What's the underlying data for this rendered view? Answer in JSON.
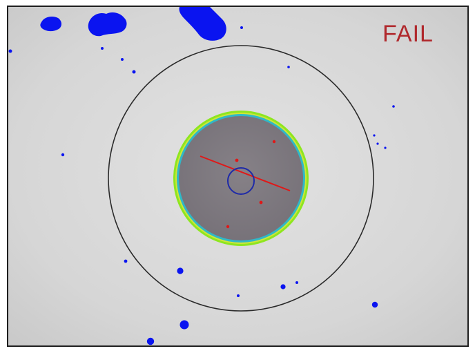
{
  "status": {
    "label": "FAIL",
    "color": "#b0282c"
  },
  "colors": {
    "background": "#d8d8d8",
    "cladding_ring": "#2a2a2a",
    "core_fill": "#7f7a80",
    "core_outline_outer": "#8ee61f",
    "core_outline_inner": "#2fb8c8",
    "center_ring": "#1e2aa8",
    "scratch": "#e01818",
    "defect_debris": "#0a14f0"
  },
  "icons": {
    "status": "fail-indicator",
    "defect": "debris-blob",
    "scratch": "scratch-line",
    "center": "center-marker"
  }
}
